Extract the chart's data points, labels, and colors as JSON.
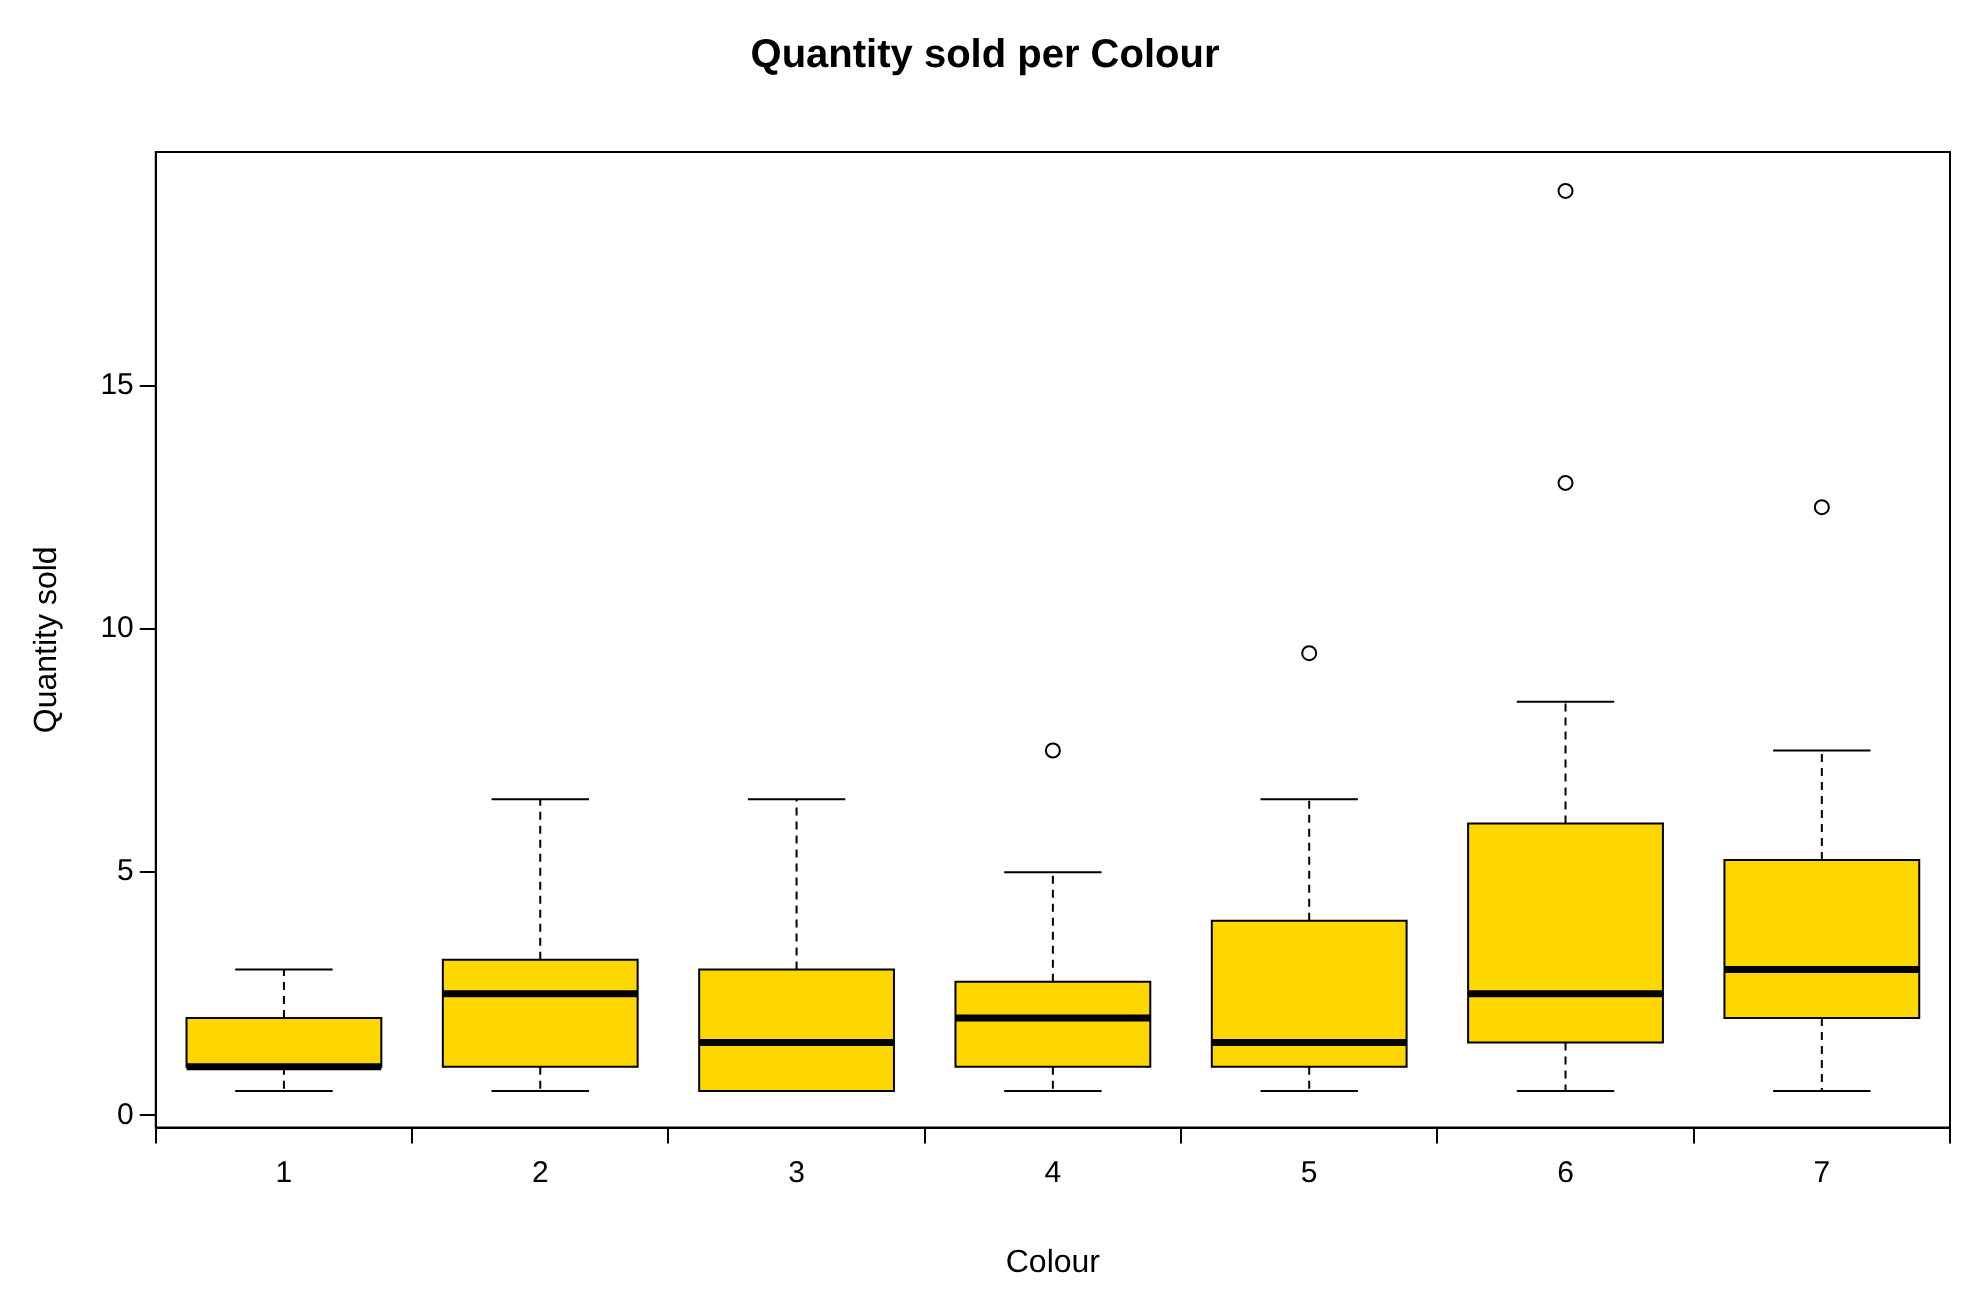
{
  "chart_data": {
    "type": "box",
    "title": "Quantity sold per Colour",
    "xlabel": "Colour",
    "ylabel": "Quantity sold",
    "categories": [
      "1",
      "2",
      "3",
      "4",
      "5",
      "6",
      "7"
    ],
    "color": "#ffd700",
    "boxes": [
      {
        "low": 0.5,
        "q1": 1,
        "median": 1,
        "q3": 2,
        "high": 3
      },
      {
        "low": 0.5,
        "q1": 1,
        "median": 2.5,
        "q3": 3.2,
        "high": 6.5
      },
      {
        "low": 0.5,
        "q1": 0.5,
        "median": 1.5,
        "q3": 3,
        "high": 6.5
      },
      {
        "low": 0.5,
        "q1": 1,
        "median": 2,
        "q3": 2.75,
        "high": 5,
        "outliers": [
          7.5
        ]
      },
      {
        "low": 0.5,
        "q1": 1,
        "median": 1.5,
        "q3": 4,
        "high": 6.5,
        "outliers": [
          9.5
        ]
      },
      {
        "low": 0.5,
        "q1": 1.5,
        "median": 2.5,
        "q3": 6,
        "high": 8.5,
        "outliers": [
          13,
          19
        ]
      },
      {
        "low": 0.5,
        "q1": 2,
        "median": 3,
        "q3": 5.25,
        "high": 7.5,
        "outliers": [
          12.5
        ]
      }
    ],
    "ylim": [
      -0.25,
      19.8
    ],
    "yticks": [
      0,
      5,
      10,
      15
    ],
    "grid": false,
    "legend": false
  }
}
